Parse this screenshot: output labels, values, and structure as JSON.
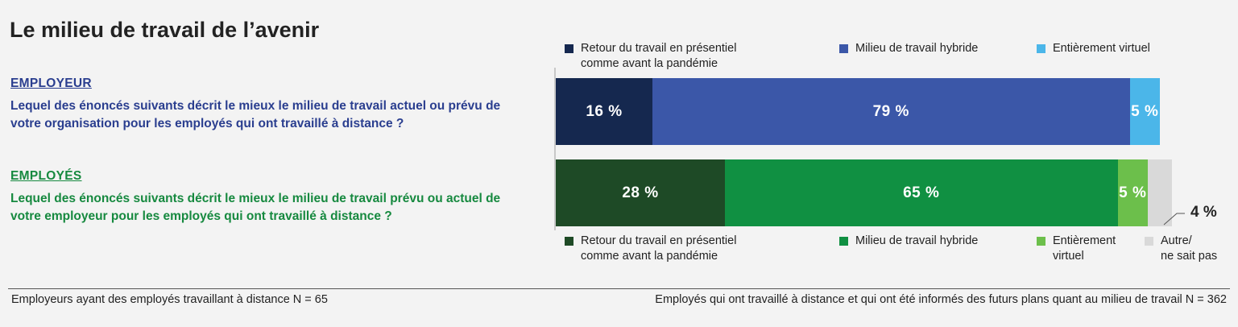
{
  "title": "Le milieu de travail de l’avenir",
  "colors": {
    "emp_presentiel": "#15284f",
    "emp_hybride": "#3b57a8",
    "emp_virtuel": "#4bb6e9",
    "em_presentiel": "#1e4a26",
    "em_hybride": "#109042",
    "em_virtuel": "#6cbf4b",
    "em_autre": "#d9d9d9"
  },
  "employeur": {
    "label": "EMPLOYEUR",
    "question": "Lequel des énoncés suivants décrit le mieux le milieu de travail actuel ou prévu de votre organisation pour les employés qui ont travaillé à distance ?"
  },
  "employes": {
    "label": "EMPLOYÉS",
    "question": "Lequel des énoncés suivants décrit le mieux le milieu de travail prévu ou actuel de votre employeur pour les employés qui ont travaillé à distance ?"
  },
  "chart_data": {
    "type": "bar",
    "orientation": "horizontal-stacked",
    "unit": "%",
    "bars": [
      {
        "group": "EMPLOYEUR",
        "segments": [
          {
            "name": "Retour du travail en présentiel comme avant la pandémie",
            "value": 16,
            "label": "16 %"
          },
          {
            "name": "Milieu de travail hybride",
            "value": 79,
            "label": "79 %"
          },
          {
            "name": "Entièrement virtuel",
            "value": 5,
            "label": "5 %"
          }
        ]
      },
      {
        "group": "EMPLOYÉS",
        "segments": [
          {
            "name": "Retour du travail en présentiel comme avant la pandémie",
            "value": 28,
            "label": "28 %"
          },
          {
            "name": "Milieu de travail hybride",
            "value": 65,
            "label": "65 %"
          },
          {
            "name": "Entièrement virtuel",
            "value": 5,
            "label": "5 %"
          },
          {
            "name": "Autre/ ne sait pas",
            "value": 4,
            "label": "4 %"
          }
        ]
      }
    ],
    "legend_top": [
      {
        "line1": "Retour du travail en présentiel",
        "line2": "comme avant la pandémie"
      },
      {
        "line1": "Milieu de travail hybride",
        "line2": ""
      },
      {
        "line1": "Entièrement virtuel",
        "line2": ""
      }
    ],
    "legend_bottom": [
      {
        "line1": "Retour du travail en présentiel",
        "line2": "comme avant la pandémie"
      },
      {
        "line1": "Milieu de travail hybride",
        "line2": ""
      },
      {
        "line1": "Entièrement",
        "line2": "virtuel"
      },
      {
        "line1": "Autre/",
        "line2": "ne sait pas"
      }
    ]
  },
  "footer": {
    "left": "Employeurs ayant des employés travaillant à distance N = 65",
    "right": "Employés qui ont travaillé à distance et qui ont été informés des futurs plans quant au milieu de travail N = 362"
  }
}
